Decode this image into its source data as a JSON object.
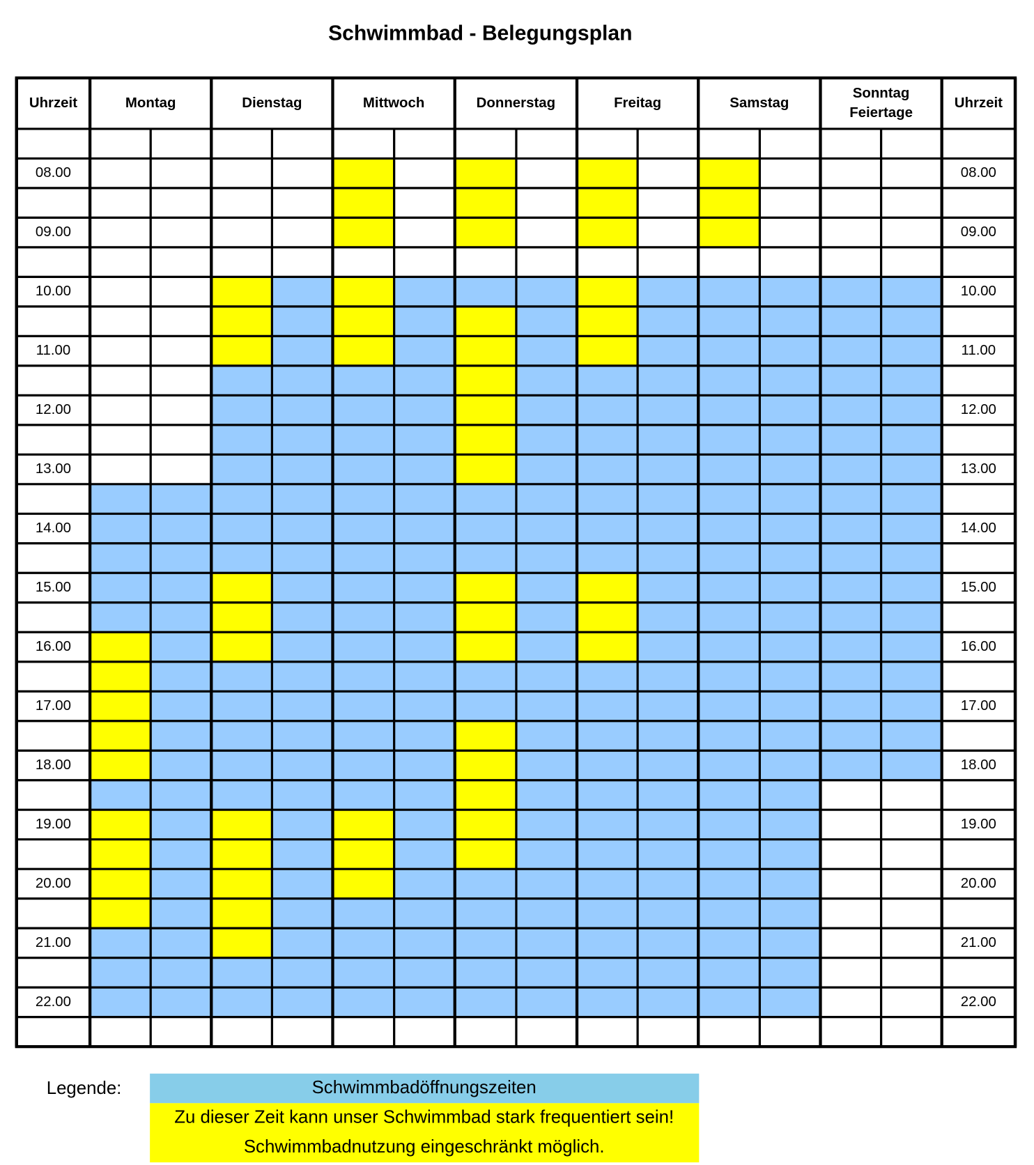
{
  "title": "Schwimmbad - Belegungsplan",
  "table": {
    "header": [
      [
        "Uhrzeit"
      ],
      [
        "Montag"
      ],
      [
        "Dienstag"
      ],
      [
        "Mittwoch"
      ],
      [
        "Donnerstag"
      ],
      [
        "Freitag"
      ],
      [
        "Samstag"
      ],
      [
        "Sonntag",
        "Feiertage"
      ],
      [
        "Uhrzeit"
      ]
    ],
    "rows": [
      {
        "time": null,
        "cells": [
          "#fff",
          "#fff",
          "#fff",
          "#fff",
          "#fff",
          "#fff",
          "#fff",
          "#fff",
          "#fff",
          "#fff",
          "#fff",
          "#fff",
          "#fff",
          "#fff"
        ]
      },
      {
        "time": "08.00",
        "cells": [
          "#fff",
          "#fff",
          "#fff",
          "#fff",
          "#ff0",
          "#fff",
          "#ff0",
          "#fff",
          "#ff0",
          "#fff",
          "#ff0",
          "#fff",
          "#fff",
          "#fff"
        ]
      },
      {
        "time": null,
        "cells": [
          "#fff",
          "#fff",
          "#fff",
          "#fff",
          "#ff0",
          "#fff",
          "#ff0",
          "#fff",
          "#ff0",
          "#fff",
          "#ff0",
          "#fff",
          "#fff",
          "#fff"
        ]
      },
      {
        "time": "09.00",
        "cells": [
          "#fff",
          "#fff",
          "#fff",
          "#fff",
          "#ff0",
          "#fff",
          "#ff0",
          "#fff",
          "#ff0",
          "#fff",
          "#ff0",
          "#fff",
          "#fff",
          "#fff"
        ]
      },
      {
        "time": null,
        "cells": [
          "#fff",
          "#fff",
          "#fff",
          "#fff",
          "#fff",
          "#fff",
          "#fff",
          "#fff",
          "#fff",
          "#fff",
          "#fff",
          "#fff",
          "#fff",
          "#fff"
        ]
      },
      {
        "time": "10.00",
        "cells": [
          "#fff",
          "#fff",
          "#ff0",
          "#9cf",
          "#ff0",
          "#9cf",
          "#9cf",
          "#9cf",
          "#ff0",
          "#9cf",
          "#9cf",
          "#9cf",
          "#9cf",
          "#9cf"
        ]
      },
      {
        "time": null,
        "cells": [
          "#fff",
          "#fff",
          "#ff0",
          "#9cf",
          "#ff0",
          "#9cf",
          "#ff0",
          "#9cf",
          "#ff0",
          "#9cf",
          "#9cf",
          "#9cf",
          "#9cf",
          "#9cf"
        ]
      },
      {
        "time": "11.00",
        "cells": [
          "#fff",
          "#fff",
          "#ff0",
          "#9cf",
          "#ff0",
          "#9cf",
          "#ff0",
          "#9cf",
          "#ff0",
          "#9cf",
          "#9cf",
          "#9cf",
          "#9cf",
          "#9cf"
        ]
      },
      {
        "time": null,
        "cells": [
          "#fff",
          "#fff",
          "#9cf",
          "#9cf",
          "#9cf",
          "#9cf",
          "#ff0",
          "#9cf",
          "#9cf",
          "#9cf",
          "#9cf",
          "#9cf",
          "#9cf",
          "#9cf"
        ]
      },
      {
        "time": "12.00",
        "cells": [
          "#fff",
          "#fff",
          "#9cf",
          "#9cf",
          "#9cf",
          "#9cf",
          "#ff0",
          "#9cf",
          "#9cf",
          "#9cf",
          "#9cf",
          "#9cf",
          "#9cf",
          "#9cf"
        ]
      },
      {
        "time": null,
        "cells": [
          "#fff",
          "#fff",
          "#9cf",
          "#9cf",
          "#9cf",
          "#9cf",
          "#ff0",
          "#9cf",
          "#9cf",
          "#9cf",
          "#9cf",
          "#9cf",
          "#9cf",
          "#9cf"
        ]
      },
      {
        "time": "13.00",
        "cells": [
          "#fff",
          "#fff",
          "#9cf",
          "#9cf",
          "#9cf",
          "#9cf",
          "#ff0",
          "#9cf",
          "#9cf",
          "#9cf",
          "#9cf",
          "#9cf",
          "#9cf",
          "#9cf"
        ]
      },
      {
        "time": null,
        "cells": [
          "#9cf",
          "#9cf",
          "#9cf",
          "#9cf",
          "#9cf",
          "#9cf",
          "#9cf",
          "#9cf",
          "#9cf",
          "#9cf",
          "#9cf",
          "#9cf",
          "#9cf",
          "#9cf"
        ]
      },
      {
        "time": "14.00",
        "cells": [
          "#9cf",
          "#9cf",
          "#9cf",
          "#9cf",
          "#9cf",
          "#9cf",
          "#9cf",
          "#9cf",
          "#9cf",
          "#9cf",
          "#9cf",
          "#9cf",
          "#9cf",
          "#9cf"
        ]
      },
      {
        "time": null,
        "cells": [
          "#9cf",
          "#9cf",
          "#9cf",
          "#9cf",
          "#9cf",
          "#9cf",
          "#9cf",
          "#9cf",
          "#9cf",
          "#9cf",
          "#9cf",
          "#9cf",
          "#9cf",
          "#9cf"
        ]
      },
      {
        "time": "15.00",
        "cells": [
          "#9cf",
          "#9cf",
          "#ff0",
          "#9cf",
          "#9cf",
          "#9cf",
          "#ff0",
          "#9cf",
          "#ff0",
          "#9cf",
          "#9cf",
          "#9cf",
          "#9cf",
          "#9cf"
        ]
      },
      {
        "time": null,
        "cells": [
          "#9cf",
          "#9cf",
          "#ff0",
          "#9cf",
          "#9cf",
          "#9cf",
          "#ff0",
          "#9cf",
          "#ff0",
          "#9cf",
          "#9cf",
          "#9cf",
          "#9cf",
          "#9cf"
        ]
      },
      {
        "time": "16.00",
        "cells": [
          "#ff0",
          "#9cf",
          "#ff0",
          "#9cf",
          "#9cf",
          "#9cf",
          "#ff0",
          "#9cf",
          "#ff0",
          "#9cf",
          "#9cf",
          "#9cf",
          "#9cf",
          "#9cf"
        ]
      },
      {
        "time": null,
        "cells": [
          "#ff0",
          "#9cf",
          "#9cf",
          "#9cf",
          "#9cf",
          "#9cf",
          "#9cf",
          "#9cf",
          "#9cf",
          "#9cf",
          "#9cf",
          "#9cf",
          "#9cf",
          "#9cf"
        ]
      },
      {
        "time": "17.00",
        "cells": [
          "#ff0",
          "#9cf",
          "#9cf",
          "#9cf",
          "#9cf",
          "#9cf",
          "#9cf",
          "#9cf",
          "#9cf",
          "#9cf",
          "#9cf",
          "#9cf",
          "#9cf",
          "#9cf"
        ]
      },
      {
        "time": null,
        "cells": [
          "#ff0",
          "#9cf",
          "#9cf",
          "#9cf",
          "#9cf",
          "#9cf",
          "#ff0",
          "#9cf",
          "#9cf",
          "#9cf",
          "#9cf",
          "#9cf",
          "#9cf",
          "#9cf"
        ]
      },
      {
        "time": "18.00",
        "cells": [
          "#ff0",
          "#9cf",
          "#9cf",
          "#9cf",
          "#9cf",
          "#9cf",
          "#ff0",
          "#9cf",
          "#9cf",
          "#9cf",
          "#9cf",
          "#9cf",
          "#9cf",
          "#9cf"
        ]
      },
      {
        "time": null,
        "cells": [
          "#9cf",
          "#9cf",
          "#9cf",
          "#9cf",
          "#9cf",
          "#9cf",
          "#ff0",
          "#9cf",
          "#9cf",
          "#9cf",
          "#9cf",
          "#9cf",
          "#fff",
          "#fff"
        ]
      },
      {
        "time": "19.00",
        "cells": [
          "#ff0",
          "#9cf",
          "#ff0",
          "#9cf",
          "#ff0",
          "#9cf",
          "#ff0",
          "#9cf",
          "#9cf",
          "#9cf",
          "#9cf",
          "#9cf",
          "#fff",
          "#fff"
        ]
      },
      {
        "time": null,
        "cells": [
          "#ff0",
          "#9cf",
          "#ff0",
          "#9cf",
          "#ff0",
          "#9cf",
          "#ff0",
          "#9cf",
          "#9cf",
          "#9cf",
          "#9cf",
          "#9cf",
          "#fff",
          "#fff"
        ]
      },
      {
        "time": "20.00",
        "cells": [
          "#ff0",
          "#9cf",
          "#ff0",
          "#9cf",
          "#ff0",
          "#9cf",
          "#9cf",
          "#9cf",
          "#9cf",
          "#9cf",
          "#9cf",
          "#9cf",
          "#fff",
          "#fff"
        ]
      },
      {
        "time": null,
        "cells": [
          "#ff0",
          "#9cf",
          "#ff0",
          "#9cf",
          "#9cf",
          "#9cf",
          "#9cf",
          "#9cf",
          "#9cf",
          "#9cf",
          "#9cf",
          "#9cf",
          "#fff",
          "#fff"
        ]
      },
      {
        "time": "21.00",
        "cells": [
          "#9cf",
          "#9cf",
          "#ff0",
          "#9cf",
          "#9cf",
          "#9cf",
          "#9cf",
          "#9cf",
          "#9cf",
          "#9cf",
          "#9cf",
          "#9cf",
          "#fff",
          "#fff"
        ]
      },
      {
        "time": null,
        "cells": [
          "#9cf",
          "#9cf",
          "#9cf",
          "#9cf",
          "#9cf",
          "#9cf",
          "#9cf",
          "#9cf",
          "#9cf",
          "#9cf",
          "#9cf",
          "#9cf",
          "#fff",
          "#fff"
        ]
      },
      {
        "time": "22.00",
        "cells": [
          "#9cf",
          "#9cf",
          "#9cf",
          "#9cf",
          "#9cf",
          "#9cf",
          "#9cf",
          "#9cf",
          "#9cf",
          "#9cf",
          "#9cf",
          "#9cf",
          "#fff",
          "#fff"
        ]
      },
      {
        "time": null,
        "cells": [
          "#fff",
          "#fff",
          "#fff",
          "#fff",
          "#fff",
          "#fff",
          "#fff",
          "#fff",
          "#fff",
          "#fff",
          "#fff",
          "#fff",
          "#fff",
          "#fff"
        ]
      }
    ]
  },
  "legend": {
    "label": "Legende:",
    "items": [
      {
        "color": "#87cde9",
        "lines": [
          "Schwimmbadöffnungszeiten"
        ]
      },
      {
        "color": "#ffff00",
        "lines": [
          "Zu dieser Zeit kann unser Schwimmbad stark frequentiert sein!",
          "Schwimmbadnutzung eingeschränkt möglich."
        ]
      }
    ]
  }
}
